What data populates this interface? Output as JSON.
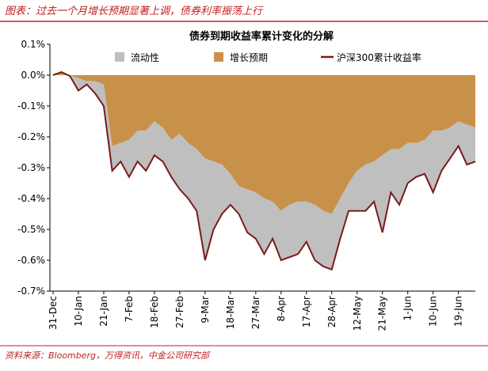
{
  "header": {
    "title": "图表：过去一个月增长预期显著上调，债券利率振荡上行"
  },
  "footer": {
    "source": "资料来源：Bloomberg，万得资讯，中金公司研究部"
  },
  "chart_data": {
    "type": "area",
    "stacked": true,
    "title": "债券到期收益率累计变化的分解",
    "categories": [
      "31-Dec",
      null,
      null,
      "10-Jan",
      null,
      null,
      "21-Jan",
      null,
      null,
      "7-Feb",
      null,
      null,
      "18-Feb",
      null,
      null,
      "27-Feb",
      null,
      null,
      "9-Mar",
      null,
      null,
      "18-Mar",
      null,
      null,
      "27-Mar",
      null,
      null,
      "8-Apr",
      null,
      null,
      "17-Apr",
      null,
      null,
      "28-Apr",
      null,
      null,
      "12-May",
      null,
      null,
      "21-May",
      null,
      null,
      "1-Jun",
      null,
      null,
      "10-Jun",
      null,
      null,
      "19-Jun",
      null,
      null
    ],
    "series": [
      {
        "name": "流动性",
        "type": "area",
        "color": "#bfbfbf",
        "values": [
          0,
          0,
          -0.003,
          -0.04,
          -0.01,
          -0.04,
          -0.07,
          -0.08,
          -0.06,
          -0.12,
          -0.1,
          -0.13,
          -0.11,
          -0.11,
          -0.12,
          -0.18,
          -0.18,
          -0.2,
          -0.33,
          -0.22,
          -0.16,
          -0.1,
          -0.09,
          -0.14,
          -0.15,
          -0.18,
          -0.12,
          -0.16,
          -0.17,
          -0.17,
          -0.13,
          -0.18,
          -0.18,
          -0.18,
          -0.13,
          -0.09,
          -0.13,
          -0.15,
          -0.13,
          -0.25,
          -0.14,
          -0.18,
          -0.13,
          -0.11,
          -0.11,
          -0.2,
          -0.13,
          -0.1,
          -0.08,
          -0.13,
          -0.11
        ]
      },
      {
        "name": "增长预期",
        "type": "area",
        "color": "#c8914a",
        "values": [
          0,
          0.01,
          0,
          -0.01,
          -0.02,
          -0.02,
          -0.03,
          -0.23,
          -0.22,
          -0.21,
          -0.18,
          -0.18,
          -0.15,
          -0.17,
          -0.21,
          -0.19,
          -0.22,
          -0.24,
          -0.27,
          -0.28,
          -0.29,
          -0.32,
          -0.36,
          -0.37,
          -0.38,
          -0.4,
          -0.41,
          -0.44,
          -0.42,
          -0.41,
          -0.41,
          -0.42,
          -0.44,
          -0.45,
          -0.4,
          -0.35,
          -0.31,
          -0.29,
          -0.28,
          -0.26,
          -0.24,
          -0.24,
          -0.22,
          -0.22,
          -0.21,
          -0.18,
          -0.18,
          -0.17,
          -0.15,
          -0.16,
          -0.17
        ]
      },
      {
        "name": "沪深300累计收益率",
        "type": "line",
        "color": "#7b1a1a",
        "values": [
          0,
          0.01,
          -0.003,
          -0.05,
          -0.03,
          -0.06,
          -0.1,
          -0.31,
          -0.28,
          -0.33,
          -0.28,
          -0.31,
          -0.26,
          -0.28,
          -0.33,
          -0.37,
          -0.4,
          -0.44,
          -0.6,
          -0.5,
          -0.45,
          -0.42,
          -0.45,
          -0.51,
          -0.53,
          -0.58,
          -0.53,
          -0.6,
          -0.59,
          -0.58,
          -0.54,
          -0.6,
          -0.62,
          -0.63,
          -0.53,
          -0.44,
          -0.44,
          -0.44,
          -0.41,
          -0.51,
          -0.38,
          -0.42,
          -0.35,
          -0.33,
          -0.32,
          -0.38,
          -0.31,
          -0.27,
          -0.23,
          -0.29,
          -0.28
        ]
      }
    ],
    "ylim": [
      -0.7,
      0.1
    ],
    "yticks": [
      {
        "value": 0.1,
        "label": "0.1%"
      },
      {
        "value": 0,
        "label": "0.0%"
      },
      {
        "value": -0.1,
        "label": "-0.1%"
      },
      {
        "value": -0.2,
        "label": "-0.2%"
      },
      {
        "value": -0.3,
        "label": "-0.3%"
      },
      {
        "value": -0.4,
        "label": "-0.4%"
      },
      {
        "value": -0.5,
        "label": "-0.5%"
      },
      {
        "value": -0.6,
        "label": "-0.6%"
      },
      {
        "value": -0.7,
        "label": "-0.7%"
      }
    ],
    "grid": false,
    "legend": "top"
  }
}
